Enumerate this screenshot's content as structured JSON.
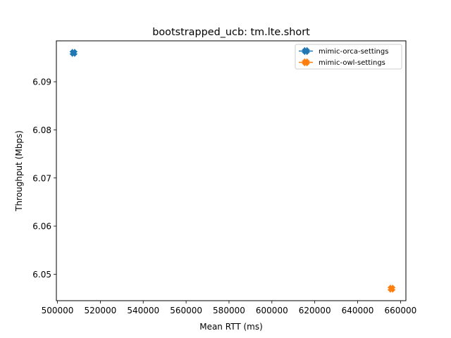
{
  "chart_data": {
    "type": "scatter",
    "title": "bootstrapped_ucb: tm.lte.short",
    "xlabel": "Mean RTT (ms)",
    "ylabel": "Throughput (Mbps)",
    "xlim": [
      499500,
      662500
    ],
    "ylim": [
      6.0445,
      6.0985
    ],
    "xticks": [
      500000,
      520000,
      540000,
      560000,
      580000,
      600000,
      620000,
      640000,
      660000
    ],
    "yticks": [
      6.05,
      6.06,
      6.07,
      6.08,
      6.09
    ],
    "grid": false,
    "legend_position": "top-right",
    "series": [
      {
        "name": "mimic-orca-settings",
        "color": "#1f77b4",
        "marker": "X",
        "x": [
          507500
        ],
        "y": [
          6.096
        ]
      },
      {
        "name": "mimic-owl-settings",
        "color": "#ff7f0e",
        "marker": "X",
        "x": [
          655800
        ],
        "y": [
          6.047
        ]
      }
    ]
  }
}
